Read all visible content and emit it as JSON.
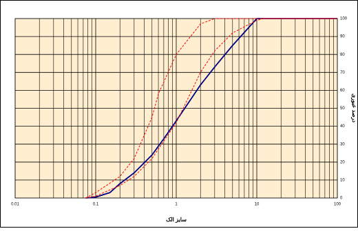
{
  "chart_data": {
    "type": "line",
    "xlabel": "سایز الک",
    "ylabel": "درصد عبوری",
    "xscale": "log",
    "xlim": [
      0.01,
      100
    ],
    "xticks": [
      0.01,
      0.1,
      1,
      10,
      100
    ],
    "ylim": [
      0,
      100
    ],
    "yticks": [
      0,
      10,
      20,
      30,
      40,
      50,
      60,
      70,
      80,
      90,
      100
    ],
    "grid": true,
    "background": "#ffefd0",
    "series": [
      {
        "color": "#000080",
        "dashed": false,
        "x": [
          0.075,
          0.1,
          0.15,
          0.2,
          0.3,
          0.5,
          0.7,
          1,
          2,
          3,
          5,
          10,
          100
        ],
        "values": [
          0,
          0.5,
          3,
          8,
          14,
          24,
          33,
          43,
          63,
          73,
          85,
          100,
          100
        ]
      },
      {
        "color": "#ff0000",
        "dashed": true,
        "x": [
          0.075,
          0.1,
          0.2,
          0.3,
          0.5,
          0.6,
          1,
          2,
          3,
          100
        ],
        "values": [
          0,
          3,
          12,
          22,
          45,
          58,
          80,
          97,
          100,
          100
        ]
      },
      {
        "color": "#ff0000",
        "dashed": true,
        "x": [
          0.075,
          0.1,
          0.2,
          0.3,
          0.5,
          1,
          2,
          3,
          5,
          10,
          12,
          100
        ],
        "values": [
          0,
          1,
          7,
          12,
          22,
          42,
          70,
          82,
          92,
          99,
          100,
          100
        ]
      }
    ]
  }
}
